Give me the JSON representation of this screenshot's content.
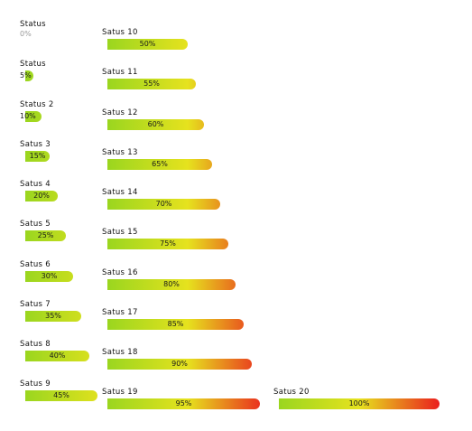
{
  "bars": [
    {
      "label": "Status",
      "percent_text": "0%",
      "value": 0
    },
    {
      "label": "Status",
      "percent_text": "5%",
      "value": 5
    },
    {
      "label": "Status 2",
      "percent_text": "10%",
      "value": 10
    },
    {
      "label": "Satus 3",
      "percent_text": "15%",
      "value": 15
    },
    {
      "label": "Satus 4",
      "percent_text": "20%",
      "value": 20
    },
    {
      "label": "Satus 5",
      "percent_text": "25%",
      "value": 25
    },
    {
      "label": "Satus 6",
      "percent_text": "30%",
      "value": 30
    },
    {
      "label": "Satus 7",
      "percent_text": "35%",
      "value": 35
    },
    {
      "label": "Satus 8",
      "percent_text": "40%",
      "value": 40
    },
    {
      "label": "Satus 9",
      "percent_text": "45%",
      "value": 45
    },
    {
      "label": "Satus 10",
      "percent_text": "50%",
      "value": 50
    },
    {
      "label": "Satus 11",
      "percent_text": "55%",
      "value": 55
    },
    {
      "label": "Satus 12",
      "percent_text": "60%",
      "value": 60
    },
    {
      "label": "Satus 13",
      "percent_text": "65%",
      "value": 65
    },
    {
      "label": "Satus 14",
      "percent_text": "70%",
      "value": 70
    },
    {
      "label": "Satus 15",
      "percent_text": "75%",
      "value": 75
    },
    {
      "label": "Satus 16",
      "percent_text": "80%",
      "value": 80
    },
    {
      "label": "Satus 17",
      "percent_text": "85%",
      "value": 85
    },
    {
      "label": "Satus 18",
      "percent_text": "90%",
      "value": 90
    },
    {
      "label": "Satus 19",
      "percent_text": "95%",
      "value": 95
    },
    {
      "label": "Satus 20",
      "percent_text": "100%",
      "value": 100
    }
  ],
  "colors": {
    "low": "#9ad61f",
    "mid": "#e6e21e",
    "high": "#ea1e1e",
    "label_text": "#111111",
    "zero_text": "#999999"
  }
}
